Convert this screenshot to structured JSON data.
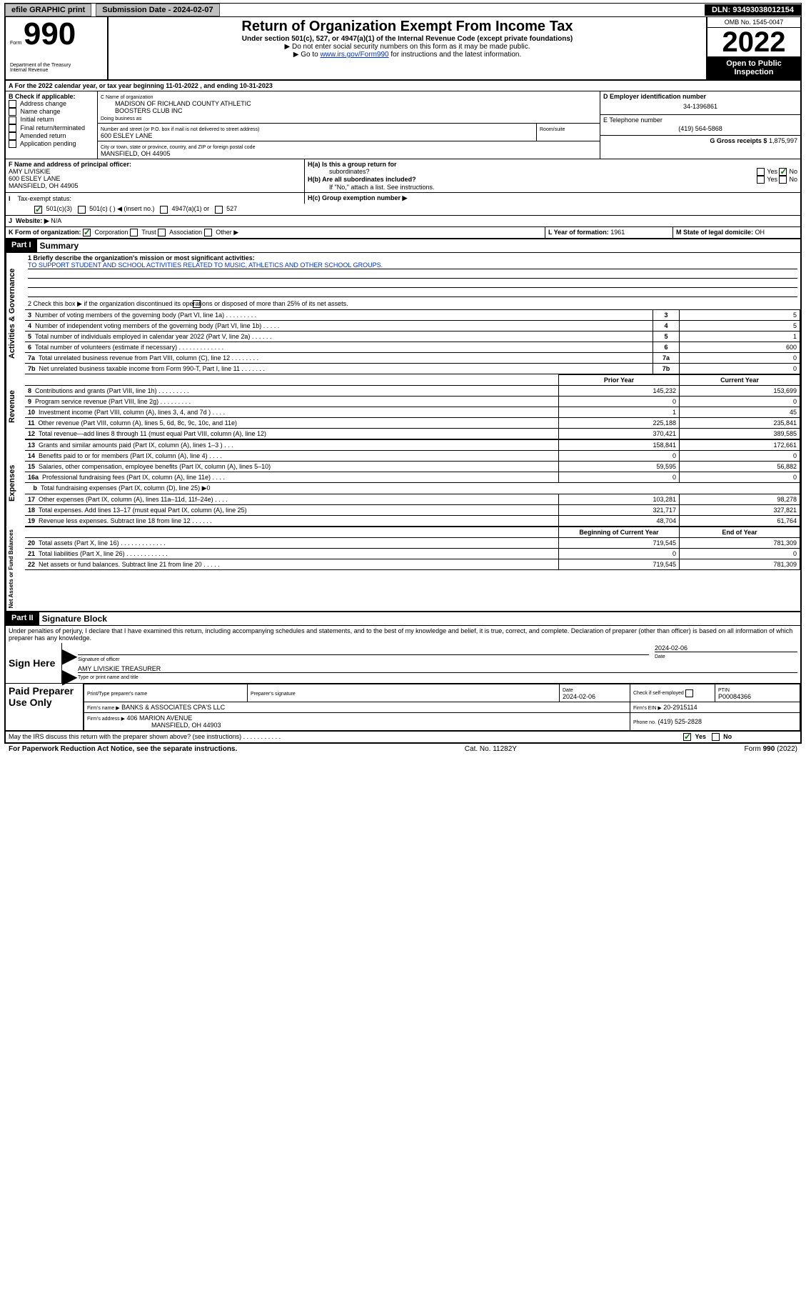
{
  "topbar": {
    "efile": "efile GRAPHIC print",
    "submission_label": "Submission Date - 2024-02-07",
    "dln": "DLN: 93493038012154"
  },
  "header": {
    "form_label": "Form",
    "form_number": "990",
    "dept": "Department of the Treasury",
    "irs": "Internal Revenue",
    "title": "Return of Organization Exempt From Income Tax",
    "subtitle1": "Under section 501(c), 527, or 4947(a)(1) of the Internal Revenue Code (except private foundations)",
    "subtitle2": "▶ Do not enter social security numbers on this form as it may be made public.",
    "subtitle3_pre": "▶ Go to ",
    "subtitle3_link": "www.irs.gov/Form990",
    "subtitle3_post": " for instructions and the latest information.",
    "omb": "OMB No. 1545-0047",
    "year": "2022",
    "inspect": "Open to Public Inspection"
  },
  "periodA": "For the 2022 calendar year, or tax year beginning 11-01-2022    , and ending 10-31-2023",
  "boxB": {
    "heading": "B Check if applicable:",
    "items": [
      "Address change",
      "Name change",
      "Initial return",
      "Final return/terminated",
      "Amended return",
      "Application pending"
    ]
  },
  "boxC": {
    "label": "C Name of organization",
    "name1": "MADISON OF RICHLAND COUNTY ATHLETIC",
    "name2": "BOOSTERS CLUB INC",
    "dba_label": "Doing business as",
    "street_label": "Number and street (or P.O. box if mail is not delivered to street address)",
    "room_label": "Room/suite",
    "street": "600 ESLEY LANE",
    "city_label": "City or town, state or province, country, and ZIP or foreign postal code",
    "city": "MANSFIELD, OH  44905"
  },
  "boxD": {
    "label": "D Employer identification number",
    "value": "34-1396861"
  },
  "boxE": {
    "label": "E Telephone number",
    "value": "(419) 564-5868"
  },
  "boxG": {
    "label": "G Gross receipts $",
    "value": "1,875,997"
  },
  "boxF": {
    "label": "F  Name and address of principal officer:",
    "name": "AMY LIVISKIE",
    "street": "600 ESLEY LANE",
    "city": "MANSFIELD, OH  44905"
  },
  "boxH": {
    "a_label": "H(a)  Is this a group return for",
    "a_sub": "subordinates?",
    "b_label": "H(b)  Are all subordinates included?",
    "note": "If \"No,\" attach a list. See instructions.",
    "c_label": "H(c)  Group exemption number ▶",
    "yes": "Yes",
    "no": "No"
  },
  "boxI": {
    "label": "Tax-exempt status:",
    "opts": [
      "501(c)(3)",
      "501(c) (  ) ◀ (insert no.)",
      "4947(a)(1) or",
      "527"
    ]
  },
  "boxJ": {
    "label": "Website: ▶",
    "value": "N/A"
  },
  "boxK": {
    "label": "K Form of organization:",
    "opts": [
      "Corporation",
      "Trust",
      "Association",
      "Other ▶"
    ]
  },
  "boxL": {
    "label": "L Year of formation:",
    "value": "1961"
  },
  "boxM": {
    "label": "M State of legal domicile:",
    "value": "OH"
  },
  "part1": {
    "bar": "Part I",
    "title": "Summary",
    "side_gov": "Activities & Governance",
    "side_rev": "Revenue",
    "side_exp": "Expenses",
    "side_net": "Net Assets or Fund Balances",
    "line1_label": "1  Briefly describe the organization's mission or most significant activities:",
    "line1_text": "TO SUPPORT STUDENT AND SCHOOL ACTIVITIES RELATED TO MUSIC, ATHLETICS AND OTHER SCHOOL GROUPS.",
    "line2": "2    Check this box ▶         if the organization discontinued its operations or disposed of more than 25% of its net assets.",
    "rows_gov": [
      {
        "n": "3",
        "t": "Number of voting members of the governing body (Part VI, line 1a)   .    .    .    .    .    .    .    .    .",
        "v": "5"
      },
      {
        "n": "4",
        "t": "Number of independent voting members of the governing body (Part VI, line 1b)   .    .    .    .    .",
        "v": "5"
      },
      {
        "n": "5",
        "t": "Total number of individuals employed in calendar year 2022 (Part V, line 2a)   .    .    .    .    .    .",
        "v": "1"
      },
      {
        "n": "6",
        "t": "Total number of volunteers (estimate if necessary)   .    .    .    .    .    .    .    .    .    .    .    .    .",
        "v": "600"
      },
      {
        "n": "7a",
        "t": "Total unrelated business revenue from Part VIII, column (C), line 12   .    .    .    .    .    .    .    .",
        "v": "0"
      },
      {
        "n": "7b",
        "t": "Net unrelated business taxable income from Form 990-T, Part I, line 11   .    .    .    .    .    .    .",
        "v": "0"
      }
    ],
    "col_prior": "Prior Year",
    "col_current": "Current Year",
    "rows_rev": [
      {
        "n": "8",
        "t": "Contributions and grants (Part VIII, line 1h)   .    .    .    .    .    .    .    .    .",
        "p": "145,232",
        "c": "153,699"
      },
      {
        "n": "9",
        "t": "Program service revenue (Part VIII, line 2g)   .    .    .    .    .    .    .    .    .",
        "p": "0",
        "c": "0"
      },
      {
        "n": "10",
        "t": "Investment income (Part VIII, column (A), lines 3, 4, and 7d )   .    .    .    .",
        "p": "1",
        "c": "45"
      },
      {
        "n": "11",
        "t": "Other revenue (Part VIII, column (A), lines 5, 6d, 8c, 9c, 10c, and 11e)",
        "p": "225,188",
        "c": "235,841"
      },
      {
        "n": "12",
        "t": "Total revenue—add lines 8 through 11 (must equal Part VIII, column (A), line 12)",
        "p": "370,421",
        "c": "389,585"
      }
    ],
    "rows_exp": [
      {
        "n": "13",
        "t": "Grants and similar amounts paid (Part IX, column (A), lines 1–3 )   .    .    .",
        "p": "158,841",
        "c": "172,661"
      },
      {
        "n": "14",
        "t": "Benefits paid to or for members (Part IX, column (A), line 4)   .    .    .    .",
        "p": "0",
        "c": "0"
      },
      {
        "n": "15",
        "t": "Salaries, other compensation, employee benefits (Part IX, column (A), lines 5–10)",
        "p": "59,595",
        "c": "56,882"
      },
      {
        "n": "16a",
        "t": "Professional fundraising fees (Part IX, column (A), line 11e)   .    .    .    .",
        "p": "0",
        "c": "0"
      },
      {
        "n": "b",
        "t": "Total fundraising expenses (Part IX, column (D), line 25) ▶0",
        "p": "",
        "c": ""
      },
      {
        "n": "17",
        "t": "Other expenses (Part IX, column (A), lines 11a–11d, 11f–24e)   .    .    .    .",
        "p": "103,281",
        "c": "98,278"
      },
      {
        "n": "18",
        "t": "Total expenses. Add lines 13–17 (must equal Part IX, column (A), line 25)",
        "p": "321,717",
        "c": "327,821"
      },
      {
        "n": "19",
        "t": "Revenue less expenses. Subtract line 18 from line 12   .    .    .    .    .    .",
        "p": "48,704",
        "c": "61,764"
      }
    ],
    "col_begin": "Beginning of Current Year",
    "col_end": "End of Year",
    "rows_net": [
      {
        "n": "20",
        "t": "Total assets (Part X, line 16)   .    .    .    .    .    .    .    .    .    .    .    .    .",
        "p": "719,545",
        "c": "781,309"
      },
      {
        "n": "21",
        "t": "Total liabilities (Part X, line 26)   .    .    .    .    .    .    .    .    .    .    .    .",
        "p": "0",
        "c": "0"
      },
      {
        "n": "22",
        "t": "Net assets or fund balances. Subtract line 21 from line 20   .    .    .    .    .",
        "p": "719,545",
        "c": "781,309"
      }
    ]
  },
  "part2": {
    "bar": "Part II",
    "title": "Signature Block",
    "decl": "Under penalties of perjury, I declare that I have examined this return, including accompanying schedules and statements, and to the best of my knowledge and belief, it is true, correct, and complete. Declaration of preparer (other than officer) is based on all information of which preparer has any knowledge.",
    "sign_here": "Sign Here",
    "sig_label": "Signature of officer",
    "date": "2024-02-06",
    "date_label": "Date",
    "name_title": "AMY LIVISKIE  TREASURER",
    "name_title_label": "Type or print name and title",
    "paid": "Paid Preparer Use Only",
    "prep_name_label": "Print/Type preparer's name",
    "prep_sig_label": "Preparer's signature",
    "prep_date": "2024-02-06",
    "check_label": "Check          if self-employed",
    "ptin_label": "PTIN",
    "ptin": "P00084366",
    "firm_name_label": "Firm's name      ▶",
    "firm_name": "BANKS & ASSOCIATES CPA'S LLC",
    "firm_ein_label": "Firm's EIN ▶",
    "firm_ein": "20-2915114",
    "firm_addr_label": "Firm's address ▶",
    "firm_addr1": "406 MARION AVENUE",
    "firm_addr2": "MANSFIELD, OH  44903",
    "phone_label": "Phone no.",
    "phone": "(419) 525-2828",
    "may_irs": "May the IRS discuss this return with the preparer shown above? (see instructions)   .    .    .    .    .    .    .    .    .    .    .",
    "yes": "Yes",
    "no": "No"
  },
  "footer": {
    "pra": "For Paperwork Reduction Act Notice, see the separate instructions.",
    "cat": "Cat. No. 11282Y",
    "form": "Form 990 (2022)"
  }
}
